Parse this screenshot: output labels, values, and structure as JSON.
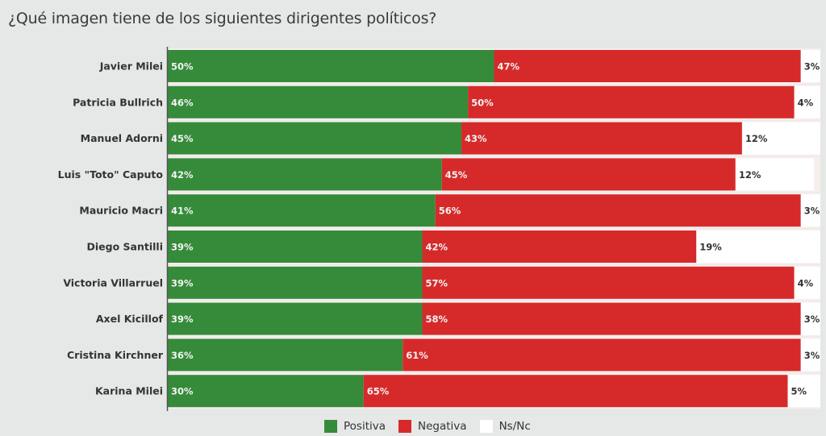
{
  "chart_data": {
    "type": "bar",
    "orientation": "horizontal",
    "stacked": true,
    "title": "¿Qué imagen tiene de los siguientes dirigentes políticos?",
    "xlabel": "",
    "ylabel": "",
    "xlim": [
      0,
      100
    ],
    "grid": false,
    "legend_position": "bottom-center",
    "categories": [
      "Javier Milei",
      "Patricia Bullrich",
      "Manuel Adorni",
      "Luis \"Toto\" Caputo",
      "Mauricio Macri",
      "Diego Santilli",
      "Victoria Villarruel",
      "Axel Kicillof",
      "Cristina Kirchner",
      "Karina Milei"
    ],
    "series": [
      {
        "name": "Positiva",
        "color": "#358b3a",
        "values": [
          50,
          46,
          45,
          42,
          41,
          39,
          39,
          39,
          36,
          30
        ]
      },
      {
        "name": "Negativa",
        "color": "#d62a2a",
        "values": [
          47,
          50,
          43,
          45,
          56,
          42,
          57,
          58,
          61,
          65
        ]
      },
      {
        "name": "Ns/Nc",
        "color": "#ffffff",
        "values": [
          3,
          4,
          12,
          12,
          3,
          19,
          4,
          3,
          3,
          5
        ]
      }
    ],
    "value_suffix": "%"
  },
  "legend": [
    {
      "label": "Positiva",
      "color": "#358b3a"
    },
    {
      "label": "Negativa",
      "color": "#d62a2a"
    },
    {
      "label": "Ns/Nc",
      "color": "#ffffff"
    }
  ]
}
